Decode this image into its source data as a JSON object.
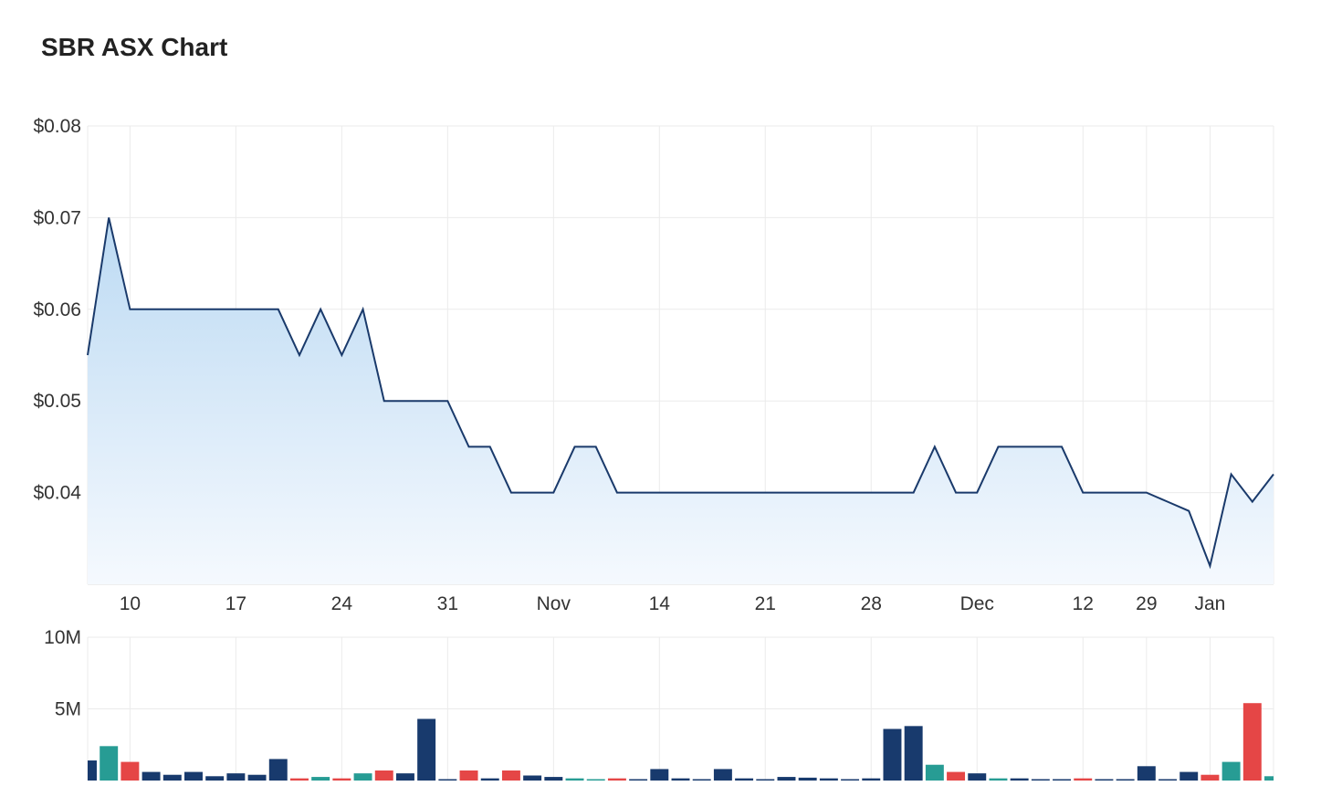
{
  "title": "SBR ASX Chart",
  "chart_data": [
    {
      "type": "area",
      "name": "price",
      "y_ticks": [
        {
          "label": "$0.08",
          "value": 0.08
        },
        {
          "label": "$0.07",
          "value": 0.07
        },
        {
          "label": "$0.06",
          "value": 0.06
        },
        {
          "label": "$0.05",
          "value": 0.05
        },
        {
          "label": "$0.04",
          "value": 0.04
        }
      ],
      "ylim": [
        0.03,
        0.08
      ],
      "x_ticks": [
        {
          "label": "10",
          "i": 2
        },
        {
          "label": "17",
          "i": 7
        },
        {
          "label": "24",
          "i": 12
        },
        {
          "label": "31",
          "i": 17
        },
        {
          "label": "Nov",
          "i": 22
        },
        {
          "label": "14",
          "i": 27
        },
        {
          "label": "21",
          "i": 32
        },
        {
          "label": "28",
          "i": 37
        },
        {
          "label": "Dec",
          "i": 42
        },
        {
          "label": "12",
          "i": 47
        },
        {
          "label": "29",
          "i": 50
        },
        {
          "label": "Jan",
          "i": 53
        }
      ],
      "values": [
        0.055,
        0.07,
        0.06,
        0.06,
        0.06,
        0.06,
        0.06,
        0.06,
        0.06,
        0.06,
        0.055,
        0.06,
        0.055,
        0.06,
        0.05,
        0.05,
        0.05,
        0.05,
        0.045,
        0.045,
        0.04,
        0.04,
        0.04,
        0.045,
        0.045,
        0.04,
        0.04,
        0.04,
        0.04,
        0.04,
        0.04,
        0.04,
        0.04,
        0.04,
        0.04,
        0.04,
        0.04,
        0.04,
        0.04,
        0.04,
        0.045,
        0.04,
        0.04,
        0.045,
        0.045,
        0.045,
        0.045,
        0.04,
        0.04,
        0.04,
        0.04,
        0.039,
        0.038,
        0.032,
        0.042,
        0.039,
        0.042
      ],
      "colors": {
        "line": "#1a3a6b",
        "fill_top": "#bcdaf3",
        "fill_bottom": "#f5f9fe",
        "grid": "#ebebeb"
      }
    },
    {
      "type": "bar",
      "name": "volume",
      "y_ticks": [
        {
          "label": "10M",
          "value": 10000000
        },
        {
          "label": "5M",
          "value": 5000000
        }
      ],
      "ylim": [
        0,
        10000000
      ],
      "values": [
        1400000,
        2400000,
        1300000,
        600000,
        400000,
        600000,
        300000,
        500000,
        400000,
        1500000,
        150000,
        250000,
        150000,
        500000,
        700000,
        500000,
        4300000,
        50000,
        700000,
        150000,
        700000,
        350000,
        250000,
        150000,
        50000,
        150000,
        50000,
        800000,
        150000,
        50000,
        800000,
        150000,
        50000,
        250000,
        200000,
        150000,
        50000,
        150000,
        3600000,
        3800000,
        1100000,
        600000,
        500000,
        150000,
        150000,
        50000,
        50000,
        150000,
        50000,
        50000,
        1000000,
        50000,
        600000,
        400000,
        1300000,
        5400000,
        300000
      ],
      "colors_per_bar": [
        "navy",
        "teal",
        "red",
        "navy",
        "navy",
        "navy",
        "navy",
        "navy",
        "navy",
        "navy",
        "red",
        "teal",
        "red",
        "teal",
        "red",
        "navy",
        "navy",
        "navy",
        "red",
        "navy",
        "red",
        "navy",
        "navy",
        "teal",
        "teal",
        "red",
        "navy",
        "navy",
        "navy",
        "navy",
        "navy",
        "navy",
        "navy",
        "navy",
        "navy",
        "navy",
        "navy",
        "navy",
        "navy",
        "navy",
        "teal",
        "red",
        "navy",
        "teal",
        "navy",
        "navy",
        "navy",
        "red",
        "navy",
        "navy",
        "navy",
        "navy",
        "navy",
        "red",
        "teal",
        "red",
        "teal"
      ],
      "palette": {
        "navy": "#183a6d",
        "teal": "#279c94",
        "red": "#e54646"
      }
    }
  ]
}
